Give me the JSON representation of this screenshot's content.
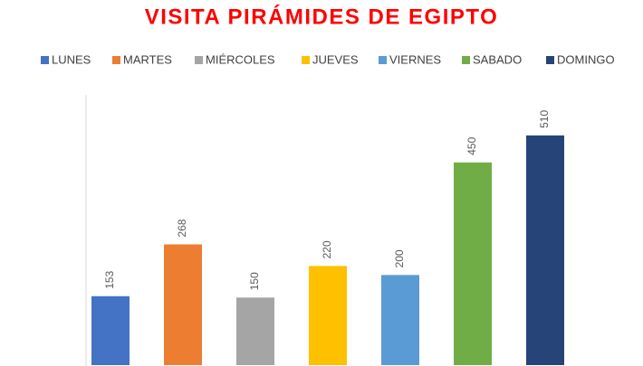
{
  "chart_data": {
    "type": "bar",
    "title": "VISITA PIRÁMIDES DE EGIPTO",
    "series": [
      {
        "name": "LUNES",
        "color": "#4472c4",
        "values": [
          153
        ]
      },
      {
        "name": "MARTES",
        "color": "#ed7d31",
        "values": [
          268
        ]
      },
      {
        "name": "MIÉRCOLES",
        "color": "#a5a5a5",
        "values": [
          150
        ]
      },
      {
        "name": "JUEVES",
        "color": "#ffc000",
        "values": [
          220
        ]
      },
      {
        "name": "VIERNES",
        "color": "#5b9bd5",
        "values": [
          200
        ]
      },
      {
        "name": "SABADO",
        "color": "#70ad47",
        "values": [
          450
        ]
      },
      {
        "name": "DOMINGO",
        "color": "#264478",
        "values": [
          510
        ]
      }
    ],
    "ylim": [
      0,
      600
    ],
    "legend": "top"
  }
}
